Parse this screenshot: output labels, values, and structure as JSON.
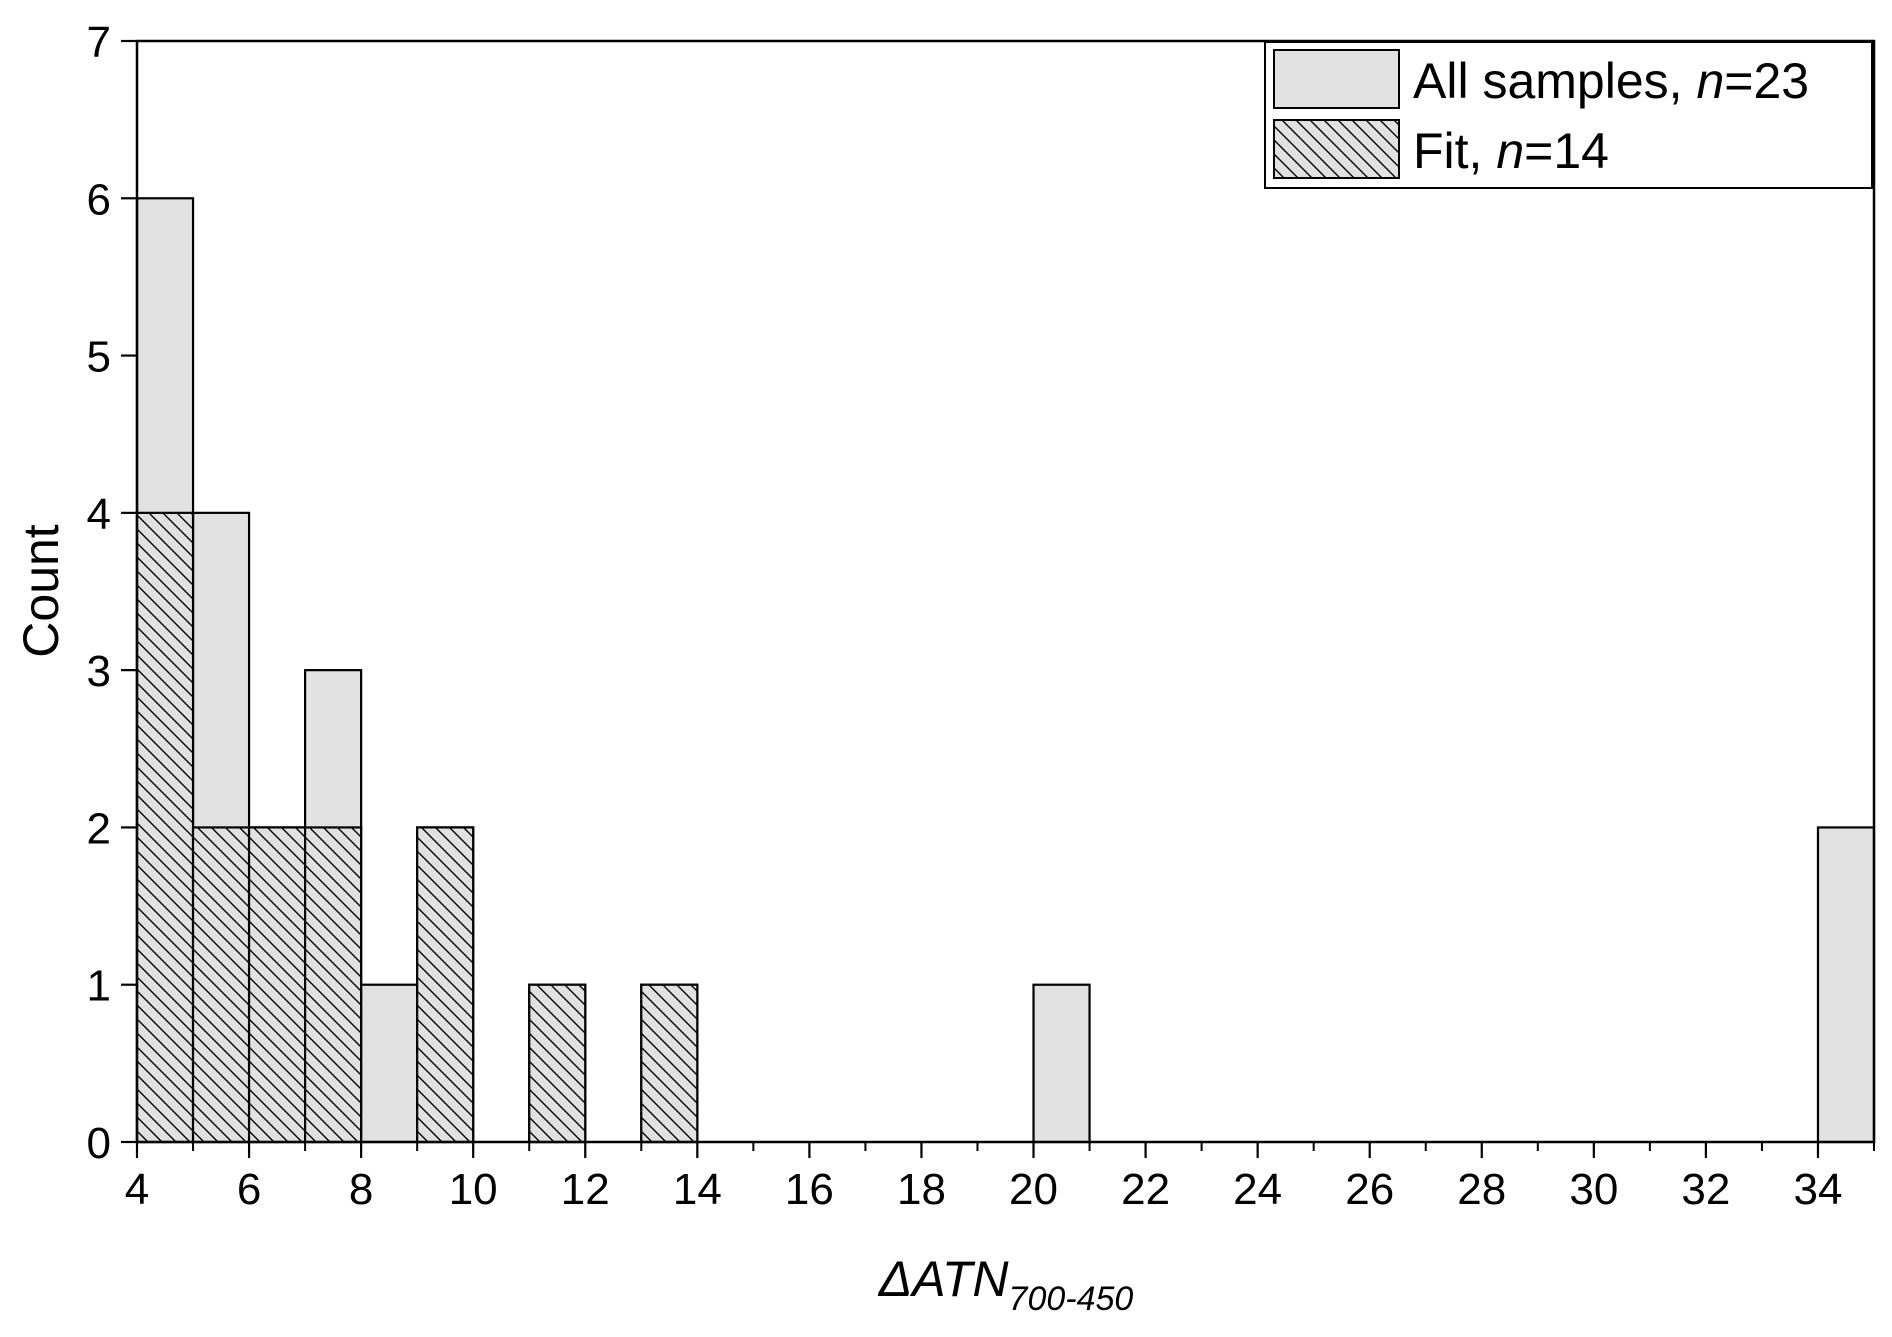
{
  "chart_data": {
    "type": "bar",
    "subtype": "histogram",
    "xlabel": {
      "symbol": "ΔATN",
      "subscript": "700-450"
    },
    "ylabel": "Count",
    "xlim": [
      4,
      35
    ],
    "ylim": [
      0,
      7
    ],
    "x_ticks": [
      4,
      6,
      8,
      10,
      12,
      14,
      16,
      18,
      20,
      22,
      24,
      26,
      28,
      30,
      32,
      34
    ],
    "x_tick_labels": [
      "4",
      "6",
      "8",
      "10",
      "12",
      "14",
      "16",
      "18",
      "20",
      "22",
      "24",
      "26",
      "28",
      "30",
      "32",
      "34"
    ],
    "y_ticks": [
      0,
      1,
      2,
      3,
      4,
      5,
      6,
      7
    ],
    "y_tick_labels": [
      "0",
      "1",
      "2",
      "3",
      "4",
      "5",
      "6",
      "7"
    ],
    "bin_width": 1,
    "grid": false,
    "legend_position": "top-right",
    "series": [
      {
        "name": "All samples, n=23",
        "legend_label": {
          "prefix": "All samples, ",
          "var": "n",
          "suffix": "=23"
        },
        "style": "solid",
        "fill": "#e1e1e1",
        "bins": [
          {
            "start": 4,
            "end": 5,
            "count": 6
          },
          {
            "start": 5,
            "end": 6,
            "count": 4
          },
          {
            "start": 6,
            "end": 7,
            "count": 2
          },
          {
            "start": 7,
            "end": 8,
            "count": 3
          },
          {
            "start": 8,
            "end": 9,
            "count": 1
          },
          {
            "start": 9,
            "end": 10,
            "count": 2
          },
          {
            "start": 11,
            "end": 12,
            "count": 1
          },
          {
            "start": 13,
            "end": 14,
            "count": 1
          },
          {
            "start": 20,
            "end": 21,
            "count": 1
          },
          {
            "start": 34,
            "end": 35,
            "count": 2
          }
        ]
      },
      {
        "name": "Fit, n=14",
        "legend_label": {
          "prefix": "Fit, ",
          "var": "n",
          "suffix": "=14"
        },
        "style": "hatched",
        "fill": "#e1e1e1",
        "bins": [
          {
            "start": 4,
            "end": 5,
            "count": 4
          },
          {
            "start": 5,
            "end": 6,
            "count": 2
          },
          {
            "start": 6,
            "end": 7,
            "count": 2
          },
          {
            "start": 7,
            "end": 8,
            "count": 2
          },
          {
            "start": 9,
            "end": 10,
            "count": 2
          },
          {
            "start": 11,
            "end": 12,
            "count": 1
          },
          {
            "start": 13,
            "end": 14,
            "count": 1
          }
        ]
      }
    ]
  }
}
